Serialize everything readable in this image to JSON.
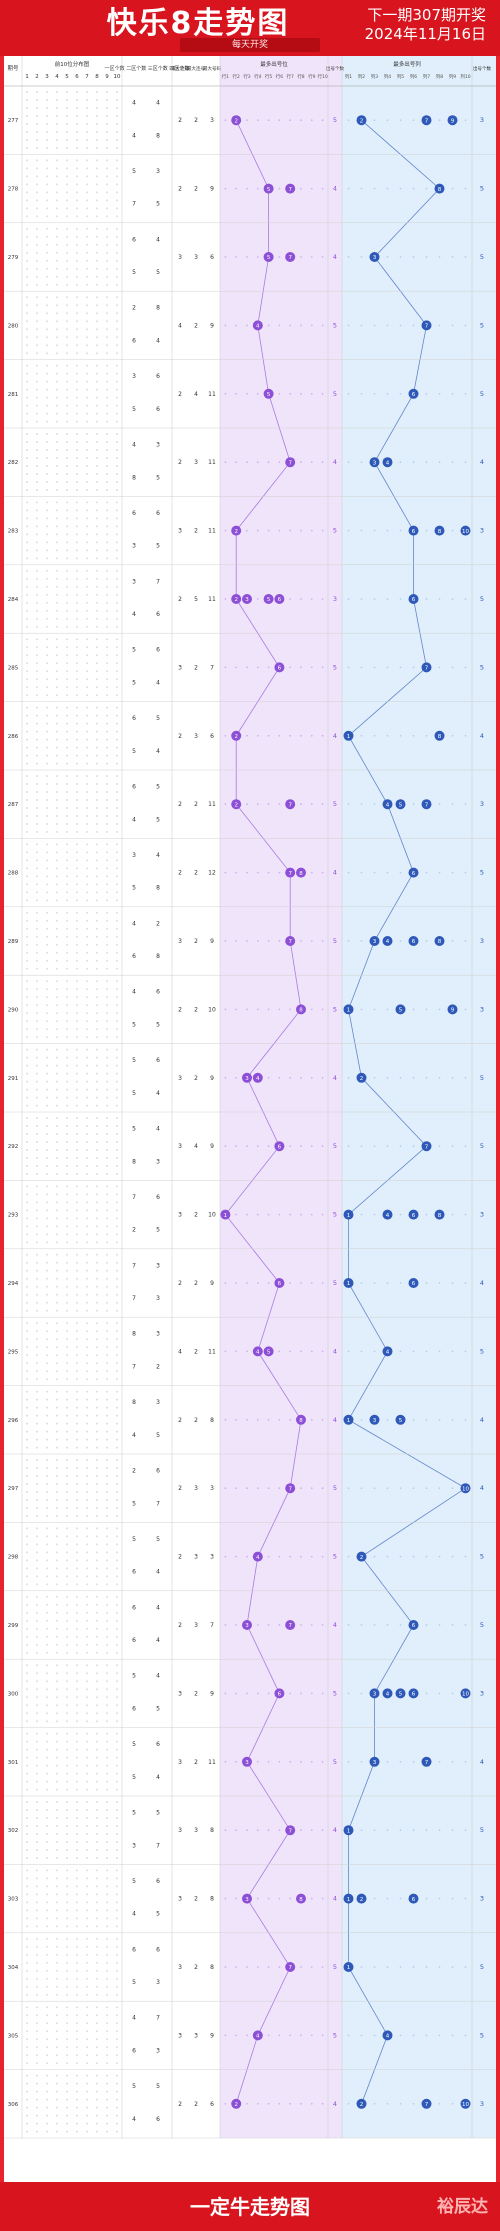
{
  "header": {
    "title": "快乐8走势图",
    "next_issue": "下一期307期开奖",
    "draw_date": "2024年11月16日",
    "subtitle": "每天开奖"
  },
  "footer": {
    "slogan": "一定牛走势图",
    "brand": "裕辰达"
  },
  "colors": {
    "red_ball": "#d92b2b",
    "purple_ball": "#8c4fd6",
    "blue_ball": "#2f59b8",
    "purple_bg": "#f0e4fb",
    "blue_bg": "#e0effb",
    "header_red": "#d8141e"
  },
  "chart_data": {
    "type": "table",
    "columns": {
      "issue": "期号",
      "distribution": "前10位分布图",
      "zone_counts": "一区个数 二区个数 三区个数 四区个数",
      "stats": [
        "最大连号",
        "最大连号",
        "最大号码"
      ],
      "min_positions": "最多出号位",
      "min_count": "出号个数",
      "max_positions": "最多出号列",
      "max_count": "出号个数"
    },
    "dist_labels": [
      "1",
      "2",
      "3",
      "4",
      "5",
      "6",
      "7",
      "8",
      "9",
      "10"
    ],
    "pos_labels": [
      "行1",
      "行2",
      "行3",
      "行4",
      "行5",
      "行6",
      "行7",
      "行8",
      "行9",
      "行10"
    ],
    "blue_labels": [
      "列1",
      "列2",
      "列3",
      "列4",
      "列5",
      "列6",
      "列7",
      "列8",
      "列9",
      "列10"
    ],
    "rows": [
      {
        "issue": "277",
        "z1": 4,
        "z2": 4,
        "z3": 4,
        "z4": 8,
        "s1": 2,
        "s2": 2,
        "s3": 3,
        "p": [
          2
        ],
        "pc": 5,
        "b": [
          2,
          7,
          9
        ],
        "bc": 3
      },
      {
        "issue": "278",
        "z1": 5,
        "z2": 3,
        "z3": 7,
        "z4": 5,
        "s1": 2,
        "s2": 2,
        "s3": 9,
        "p": [
          5,
          7
        ],
        "pc": 4,
        "b": [
          8
        ],
        "bc": 5
      },
      {
        "issue": "279",
        "z1": 6,
        "z2": 4,
        "z3": 5,
        "z4": 5,
        "s1": 3,
        "s2": 3,
        "s3": 6,
        "p": [
          5,
          7
        ],
        "pc": 4,
        "b": [
          3
        ],
        "bc": 5
      },
      {
        "issue": "280",
        "z1": 2,
        "z2": 8,
        "z3": 6,
        "z4": 4,
        "s1": 4,
        "s2": 2,
        "s3": 9,
        "p": [
          4
        ],
        "pc": 5,
        "b": [
          7
        ],
        "bc": 5
      },
      {
        "issue": "281",
        "z1": 3,
        "z2": 6,
        "z3": 5,
        "z4": 6,
        "s1": 2,
        "s2": 4,
        "s3": 11,
        "p": [
          5
        ],
        "pc": 5,
        "b": [
          6
        ],
        "bc": 5
      },
      {
        "issue": "282",
        "z1": 4,
        "z2": 3,
        "z3": 8,
        "z4": 5,
        "s1": 2,
        "s2": 3,
        "s3": 11,
        "p": [
          7
        ],
        "pc": 4,
        "b": [
          3,
          4
        ],
        "bc": 4
      },
      {
        "issue": "283",
        "z1": 6,
        "z2": 6,
        "z3": 3,
        "z4": 5,
        "s1": 3,
        "s2": 2,
        "s3": 11,
        "p": [
          2
        ],
        "pc": 5,
        "b": [
          6,
          8,
          10
        ],
        "bc": 3
      },
      {
        "issue": "284",
        "z1": 3,
        "z2": 7,
        "z3": 4,
        "z4": 6,
        "s1": 2,
        "s2": 5,
        "s3": 11,
        "p": [
          2,
          3,
          5,
          6
        ],
        "pc": 3,
        "b": [
          6
        ],
        "bc": 5
      },
      {
        "issue": "285",
        "z1": 5,
        "z2": 6,
        "z3": 5,
        "z4": 4,
        "s1": 3,
        "s2": 2,
        "s3": 7,
        "p": [
          6
        ],
        "pc": 5,
        "b": [
          7
        ],
        "bc": 5
      },
      {
        "issue": "286",
        "z1": 6,
        "z2": 5,
        "z3": 5,
        "z4": 4,
        "s1": 2,
        "s2": 3,
        "s3": 6,
        "p": [
          2
        ],
        "pc": 4,
        "b": [
          1,
          8
        ],
        "bc": 4
      },
      {
        "issue": "287",
        "z1": 6,
        "z2": 5,
        "z3": 4,
        "z4": 5,
        "s1": 2,
        "s2": 2,
        "s3": 11,
        "p": [
          2,
          7
        ],
        "pc": 5,
        "b": [
          4,
          5,
          7
        ],
        "bc": 3
      },
      {
        "issue": "288",
        "z1": 3,
        "z2": 4,
        "z3": 5,
        "z4": 8,
        "s1": 2,
        "s2": 2,
        "s3": 12,
        "p": [
          7,
          8
        ],
        "pc": 4,
        "b": [
          6
        ],
        "bc": 5
      },
      {
        "issue": "289",
        "z1": 4,
        "z2": 2,
        "z3": 6,
        "z4": 8,
        "s1": 3,
        "s2": 2,
        "s3": 9,
        "p": [
          7
        ],
        "pc": 5,
        "b": [
          3,
          4,
          6,
          8
        ],
        "bc": 3
      },
      {
        "issue": "290",
        "z1": 4,
        "z2": 6,
        "z3": 5,
        "z4": 5,
        "s1": 2,
        "s2": 2,
        "s3": 10,
        "p": [
          8
        ],
        "pc": 5,
        "b": [
          1,
          5,
          9
        ],
        "bc": 3
      },
      {
        "issue": "291",
        "z1": 5,
        "z2": 6,
        "z3": 5,
        "z4": 4,
        "s1": 3,
        "s2": 2,
        "s3": 9,
        "p": [
          3,
          4
        ],
        "pc": 4,
        "b": [
          2
        ],
        "bc": 5
      },
      {
        "issue": "292",
        "z1": 5,
        "z2": 4,
        "z3": 8,
        "z4": 3,
        "s1": 3,
        "s2": 4,
        "s3": 9,
        "p": [
          6
        ],
        "pc": 5,
        "b": [
          7
        ],
        "bc": 5
      },
      {
        "issue": "293",
        "z1": 7,
        "z2": 6,
        "z3": 2,
        "z4": 5,
        "s1": 3,
        "s2": 2,
        "s3": 10,
        "p": [
          1
        ],
        "pc": 5,
        "b": [
          1,
          4,
          6,
          8
        ],
        "bc": 3
      },
      {
        "issue": "294",
        "z1": 7,
        "z2": 3,
        "z3": 7,
        "z4": 3,
        "s1": 2,
        "s2": 2,
        "s3": 9,
        "p": [
          6
        ],
        "pc": 5,
        "b": [
          1,
          6
        ],
        "bc": 4
      },
      {
        "issue": "295",
        "z1": 8,
        "z2": 3,
        "z3": 7,
        "z4": 2,
        "s1": 4,
        "s2": 2,
        "s3": 11,
        "p": [
          4,
          5
        ],
        "pc": 4,
        "b": [
          4
        ],
        "bc": 5
      },
      {
        "issue": "296",
        "z1": 8,
        "z2": 3,
        "z3": 4,
        "z4": 5,
        "s1": 2,
        "s2": 2,
        "s3": 8,
        "p": [
          8
        ],
        "pc": 4,
        "b": [
          1,
          3,
          5
        ],
        "bc": 4
      },
      {
        "issue": "297",
        "z1": 2,
        "z2": 6,
        "z3": 5,
        "z4": 7,
        "s1": 2,
        "s2": 3,
        "s3": 3,
        "p": [
          7
        ],
        "pc": 5,
        "b": [
          10
        ],
        "bc": 4
      },
      {
        "issue": "298",
        "z1": 5,
        "z2": 5,
        "z3": 6,
        "z4": 4,
        "s1": 2,
        "s2": 3,
        "s3": 3,
        "p": [
          4
        ],
        "pc": 5,
        "b": [
          2
        ],
        "bc": 5
      },
      {
        "issue": "299",
        "z1": 6,
        "z2": 4,
        "z3": 6,
        "z4": 4,
        "s1": 2,
        "s2": 3,
        "s3": 7,
        "p": [
          3,
          7
        ],
        "pc": 4,
        "b": [
          6
        ],
        "bc": 5
      },
      {
        "issue": "300",
        "z1": 5,
        "z2": 4,
        "z3": 6,
        "z4": 5,
        "s1": 3,
        "s2": 2,
        "s3": 9,
        "p": [
          6
        ],
        "pc": 5,
        "b": [
          3,
          4,
          5,
          6,
          10
        ],
        "bc": 3
      },
      {
        "issue": "301",
        "z1": 5,
        "z2": 6,
        "z3": 5,
        "z4": 4,
        "s1": 3,
        "s2": 2,
        "s3": 11,
        "p": [
          3
        ],
        "pc": 5,
        "b": [
          3,
          7
        ],
        "bc": 4
      },
      {
        "issue": "302",
        "z1": 5,
        "z2": 5,
        "z3": 3,
        "z4": 7,
        "s1": 3,
        "s2": 3,
        "s3": 8,
        "p": [
          7
        ],
        "pc": 4,
        "b": [
          1
        ],
        "bc": 5
      },
      {
        "issue": "303",
        "z1": 5,
        "z2": 6,
        "z3": 4,
        "z4": 5,
        "s1": 3,
        "s2": 2,
        "s3": 8,
        "p": [
          3,
          8
        ],
        "pc": 4,
        "b": [
          1,
          2,
          6
        ],
        "bc": 3
      },
      {
        "issue": "304",
        "z1": 6,
        "z2": 6,
        "z3": 5,
        "z4": 3,
        "s1": 3,
        "s2": 2,
        "s3": 8,
        "p": [
          7
        ],
        "pc": 5,
        "b": [
          1
        ],
        "bc": 5
      },
      {
        "issue": "305",
        "z1": 4,
        "z2": 7,
        "z3": 6,
        "z4": 3,
        "s1": 3,
        "s2": 3,
        "s3": 9,
        "p": [
          4
        ],
        "pc": 5,
        "b": [
          4
        ],
        "bc": 5
      },
      {
        "issue": "306",
        "z1": 5,
        "z2": 5,
        "z3": 4,
        "z4": 6,
        "s1": 2,
        "s2": 2,
        "s3": 6,
        "p": [
          2
        ],
        "pc": 4,
        "b": [
          2,
          7,
          10
        ],
        "bc": 3
      }
    ]
  }
}
